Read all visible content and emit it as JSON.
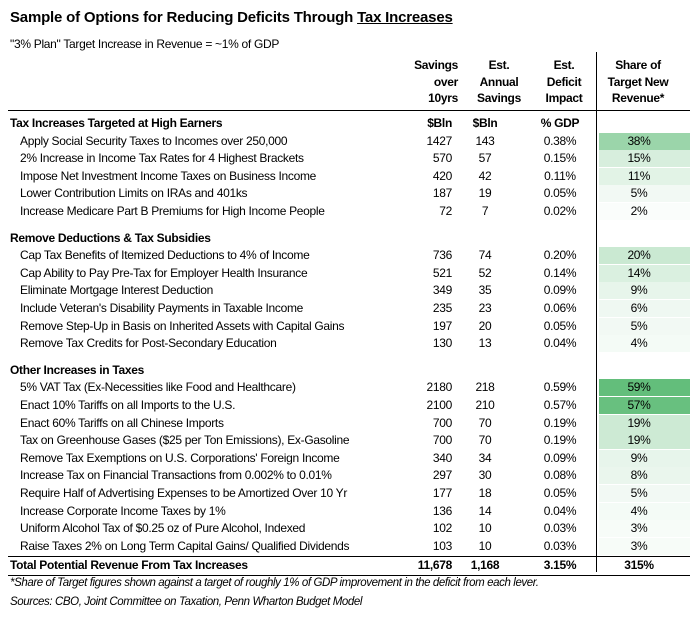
{
  "title_prefix": "Sample of Options for Reducing Deficits Through ",
  "title_underlined": "Tax Increases",
  "subtitle": "\"3% Plan\" Target Increase in Revenue = ~1% of GDP",
  "columns": {
    "savings": [
      "Savings",
      "over",
      "10yrs"
    ],
    "annual": [
      "Est.",
      "Annual",
      "Savings"
    ],
    "deficit": [
      "Est.",
      "Deficit",
      "Impact"
    ],
    "share": [
      "Share of",
      "Target New",
      "Revenue*"
    ]
  },
  "sections": [
    {
      "title": "Tax Increases Targeted at High Earners",
      "units": [
        "$Bln",
        "$Bln",
        "% GDP"
      ],
      "items": [
        {
          "label": "Apply Social Security Taxes to Incomes over 250,000",
          "savings": "1427",
          "annual": "143",
          "deficit": "0.38%",
          "share": "38%",
          "share_value": 38
        },
        {
          "label": "2% Increase in Income Tax Rates for 4 Highest Brackets",
          "savings": "570",
          "annual": "57",
          "deficit": "0.15%",
          "share": "15%",
          "share_value": 15
        },
        {
          "label": "Impose Net Investment Income Taxes on Business Income",
          "savings": "420",
          "annual": "42",
          "deficit": "0.11%",
          "share": "11%",
          "share_value": 11
        },
        {
          "label": "Lower Contribution Limits on IRAs and 401ks",
          "savings": "187",
          "annual": "19",
          "deficit": "0.05%",
          "share": "5%",
          "share_value": 5
        },
        {
          "label": "Increase Medicare Part B Premiums for High Income People",
          "savings": "72",
          "annual": "7",
          "deficit": "0.02%",
          "share": "2%",
          "share_value": 2
        }
      ]
    },
    {
      "title": "Remove Deductions & Tax Subsidies",
      "units": [
        "",
        "",
        ""
      ],
      "items": [
        {
          "label": "Cap Tax Benefits of Itemized Deductions to 4% of Income",
          "savings": "736",
          "annual": "74",
          "deficit": "0.20%",
          "share": "20%",
          "share_value": 20
        },
        {
          "label": "Cap Ability to Pay Pre-Tax for Employer Health Insurance",
          "savings": "521",
          "annual": "52",
          "deficit": "0.14%",
          "share": "14%",
          "share_value": 14
        },
        {
          "label": "Eliminate Mortgage Interest Deduction",
          "savings": "349",
          "annual": "35",
          "deficit": "0.09%",
          "share": "9%",
          "share_value": 9
        },
        {
          "label": "Include Veteran's Disability Payments in Taxable Income",
          "savings": "235",
          "annual": "23",
          "deficit": "0.06%",
          "share": "6%",
          "share_value": 6
        },
        {
          "label": "Remove Step-Up in Basis on Inherited Assets with Capital Gains",
          "savings": "197",
          "annual": "20",
          "deficit": "0.05%",
          "share": "5%",
          "share_value": 5
        },
        {
          "label": "Remove Tax Credits for Post-Secondary Education",
          "savings": "130",
          "annual": "13",
          "deficit": "0.04%",
          "share": "4%",
          "share_value": 4
        }
      ]
    },
    {
      "title": "Other Increases in Taxes",
      "units": [
        "",
        "",
        ""
      ],
      "items": [
        {
          "label": "5% VAT Tax (Ex-Necessities like Food and Healthcare)",
          "savings": "2180",
          "annual": "218",
          "deficit": "0.59%",
          "share": "59%",
          "share_value": 59
        },
        {
          "label": "Enact 10% Tariffs on all Imports to the U.S.",
          "savings": "2100",
          "annual": "210",
          "deficit": "0.57%",
          "share": "57%",
          "share_value": 57
        },
        {
          "label": "Enact 60% Tariffs on all Chinese Imports",
          "savings": "700",
          "annual": "70",
          "deficit": "0.19%",
          "share": "19%",
          "share_value": 19
        },
        {
          "label": "Tax on Greenhouse Gases ($25 per Ton Emissions), Ex-Gasoline",
          "savings": "700",
          "annual": "70",
          "deficit": "0.19%",
          "share": "19%",
          "share_value": 19
        },
        {
          "label": "Remove Tax Exemptions on U.S. Corporations' Foreign Income",
          "savings": "340",
          "annual": "34",
          "deficit": "0.09%",
          "share": "9%",
          "share_value": 9
        },
        {
          "label": "Increase Tax on Financial Transactions from 0.002% to 0.01%",
          "savings": "297",
          "annual": "30",
          "deficit": "0.08%",
          "share": "8%",
          "share_value": 8
        },
        {
          "label": "Require Half of Advertising Expenses to be Amortized Over 10 Yr",
          "savings": "177",
          "annual": "18",
          "deficit": "0.05%",
          "share": "5%",
          "share_value": 5
        },
        {
          "label": "Increase Corporate Income Taxes by 1%",
          "savings": "136",
          "annual": "14",
          "deficit": "0.04%",
          "share": "4%",
          "share_value": 4
        },
        {
          "label": "Uniform Alcohol Tax of $0.25 oz of Pure Alcohol, Indexed",
          "savings": "102",
          "annual": "10",
          "deficit": "0.03%",
          "share": "3%",
          "share_value": 3
        },
        {
          "label": "Raise Taxes 2% on Long Term Capital Gains/ Qualified Dividends",
          "savings": "103",
          "annual": "10",
          "deficit": "0.03%",
          "share": "3%",
          "share_value": 3
        }
      ]
    }
  ],
  "total": {
    "label": "Total Potential Revenue From Tax Increases",
    "savings": "11,678",
    "annual": "1,168",
    "deficit": "3.15%",
    "share": "315%"
  },
  "footnote": "*Share of Target figures shown against a target of roughly 1% of GDP improvement in the deficit from each lever.",
  "sources": "Sources: CBO, Joint Committee on Taxation, Penn Wharton Budget Model",
  "colors": {
    "heat_max": "#63be7b",
    "heat_min": "#ffffff"
  }
}
